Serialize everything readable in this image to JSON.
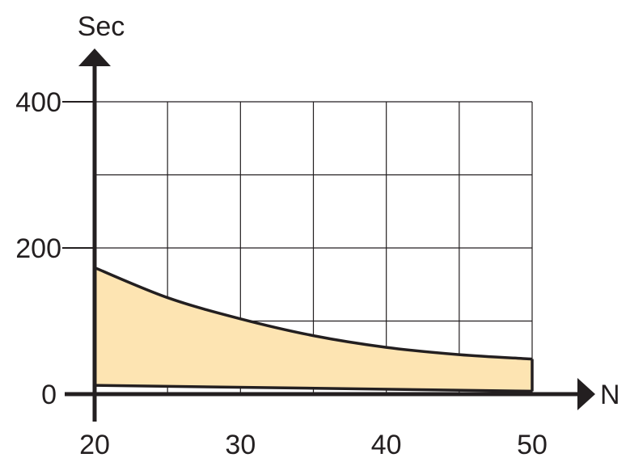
{
  "chart_data": {
    "type": "area",
    "title": "",
    "xlabel": "N",
    "ylabel": "Sec",
    "xlim": [
      20,
      50
    ],
    "ylim": [
      0,
      400
    ],
    "x_ticks": [
      20,
      30,
      40,
      50
    ],
    "y_ticks": [
      0,
      200,
      400
    ],
    "grid": true,
    "grid_x_step": 5,
    "grid_y_step": 100,
    "fill_color": "#fde4b2",
    "series": [
      {
        "role": "upper",
        "x": [
          20,
          25,
          30,
          35,
          40,
          45,
          50
        ],
        "values": [
          173,
          132,
          103,
          80,
          64,
          54,
          48
        ]
      },
      {
        "role": "lower",
        "x": [
          20,
          50
        ],
        "values": [
          12,
          4
        ]
      }
    ]
  }
}
